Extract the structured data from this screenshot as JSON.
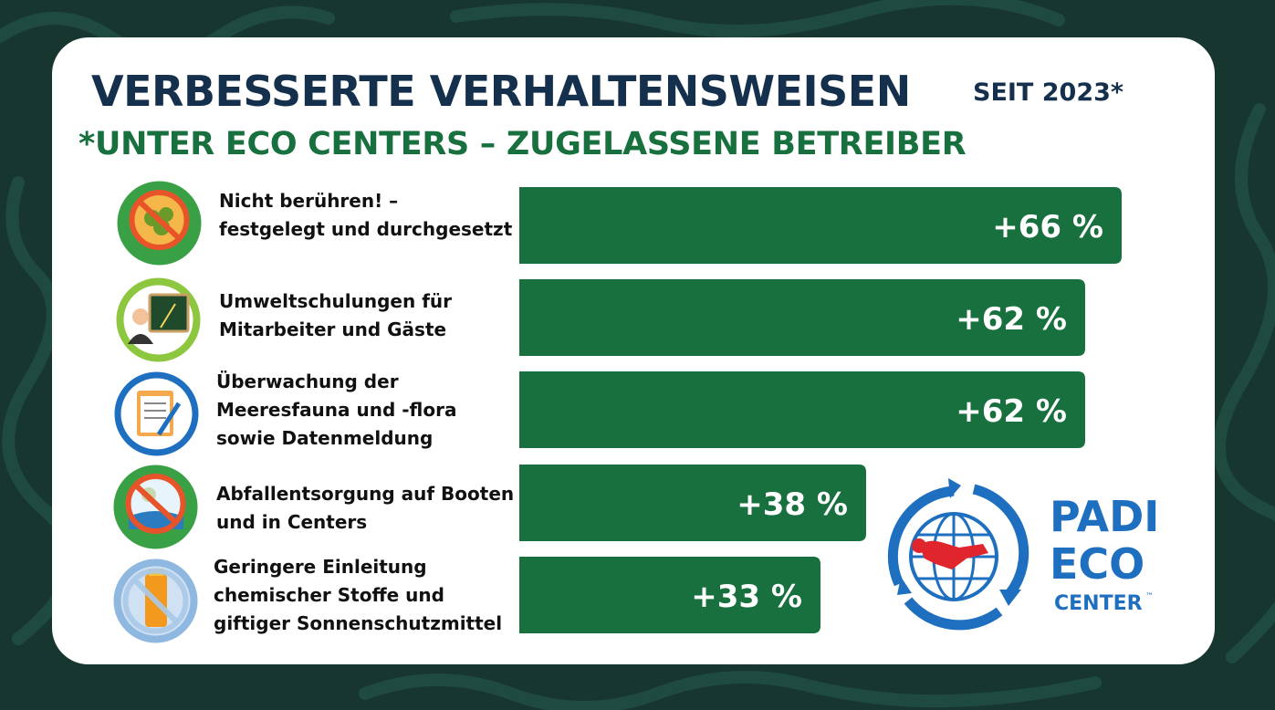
{
  "header": {
    "title": "VERBESSERTE VERHALTENSWEISEN",
    "since": "SEIT 2023*",
    "subtitle": "*UNTER ECO CENTERS – ZUGELASSENE BETREIBER"
  },
  "chart_data": {
    "type": "bar",
    "orientation": "horizontal",
    "categories": [
      "Nicht berühren! –\nfestgelegt und durchgesetzt",
      "Umweltschulungen für\nMitarbeiter und Gäste",
      "Überwachung der\nMeeresfauna und -flora\nsowie Datenmeldung",
      "Abfallentsorgung auf Booten\nund in Centers",
      "Geringere Einleitung\nchemischer Stoffe und\ngiftiger Sonnenschutzmittel"
    ],
    "values": [
      66,
      62,
      62,
      38,
      33
    ],
    "data_labels": [
      "+66 %",
      "+62 %",
      "+62 %",
      "+38 %",
      "+33 %"
    ],
    "bar_color": "#17703d"
  },
  "icons": [
    {
      "name": "do-not-touch-icon",
      "ring_color": "#3aa045",
      "caption": "Do not collect dead or alive marine life"
    },
    {
      "name": "teacher-icon",
      "ring_color": "#8dc63f"
    },
    {
      "name": "clipboard-icon",
      "ring_color": "#1f6fc0"
    },
    {
      "name": "no-littering-icon",
      "ring_color": "#3aa045",
      "caption": "No littering"
    },
    {
      "name": "no-sunscreen-icon",
      "ring_color": "#8fb8e0",
      "caption": "TOX"
    }
  ],
  "logo": {
    "line1": "PADI",
    "line2": "ECO",
    "line3": "CENTER",
    "tm": "™",
    "color": "#1f6fc0"
  },
  "colors": {
    "title": "#15304d",
    "subtitle": "#17703d",
    "background": "#16362f"
  }
}
